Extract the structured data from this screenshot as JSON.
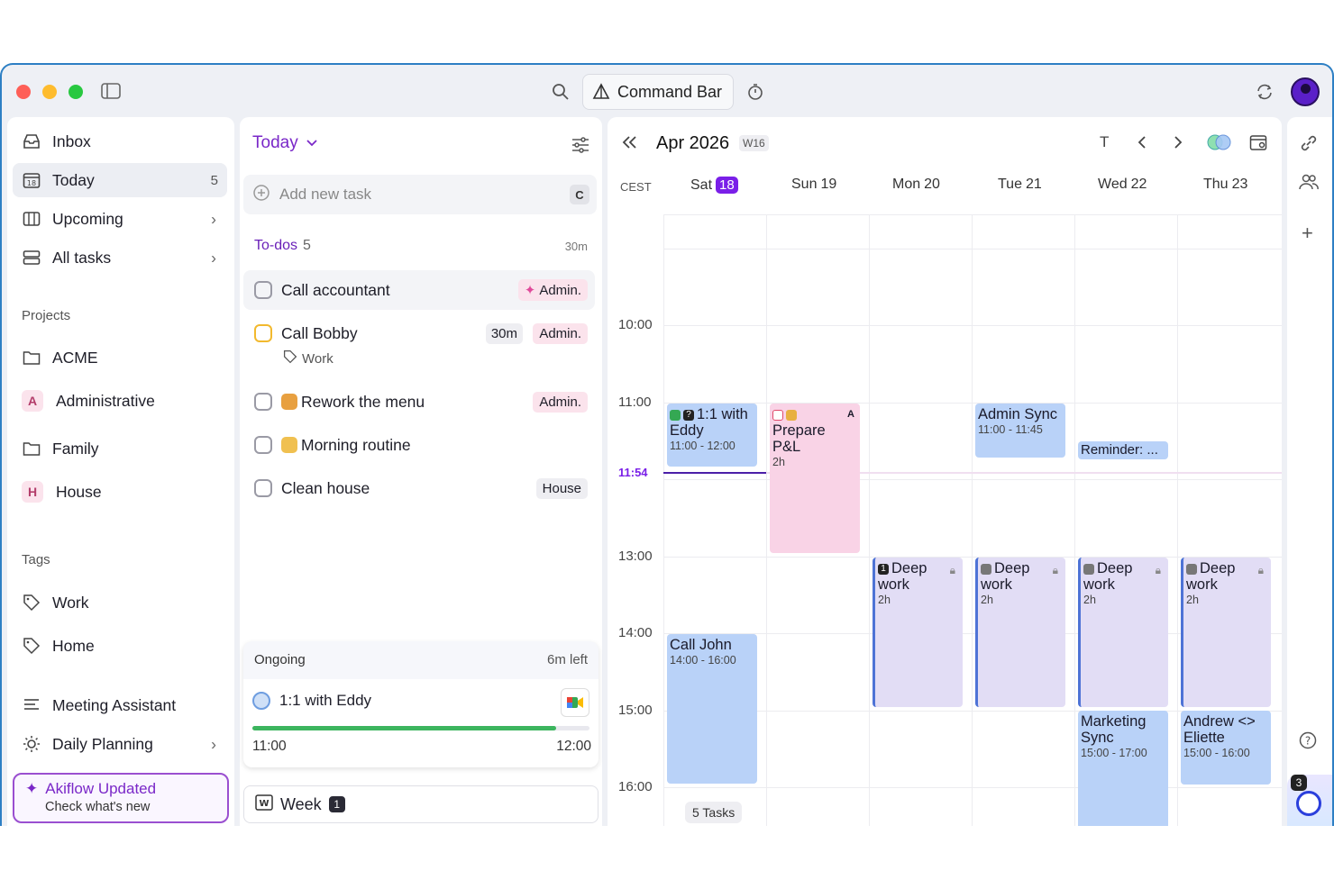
{
  "titlebar": {
    "command_bar": "Command Bar"
  },
  "sidebar": {
    "nav": [
      {
        "label": "Inbox"
      },
      {
        "label": "Today",
        "count": "5"
      },
      {
        "label": "Upcoming"
      },
      {
        "label": "All tasks"
      }
    ],
    "projects_label": "Projects",
    "projects": [
      {
        "label": "ACME"
      },
      {
        "label": "Administrative",
        "badge": "A"
      },
      {
        "label": "Family"
      },
      {
        "label": "House",
        "badge": "H"
      }
    ],
    "tags_label": "Tags",
    "tags": [
      {
        "label": "Work"
      },
      {
        "label": "Home"
      }
    ],
    "extras": [
      {
        "label": "Meeting Assistant"
      },
      {
        "label": "Daily Planning"
      }
    ],
    "update": {
      "title": "Akiflow Updated",
      "subtitle": "Check what's new"
    }
  },
  "tasks": {
    "title": "Today",
    "add_placeholder": "Add new task",
    "add_key": "C",
    "todos_label": "To-dos",
    "todos_count": "5",
    "todos_time": "30m",
    "items": [
      {
        "label": "Call accountant",
        "tag": "Admin."
      },
      {
        "label": "Call Bobby",
        "tag": "Admin.",
        "duration": "30m",
        "subtag": "Work"
      },
      {
        "label": "Rework the menu",
        "tag": "Admin."
      },
      {
        "label": "Morning routine"
      },
      {
        "label": "Clean house",
        "tag": "House"
      }
    ],
    "ongoing": {
      "label": "Ongoing",
      "left": "6m left",
      "event": "1:1 with Eddy",
      "start": "11:00",
      "end": "12:00",
      "progress": 0.9
    },
    "week": {
      "label": "Week",
      "count": "1"
    }
  },
  "calendar": {
    "month": "Apr 2026",
    "week": "W16",
    "today_btn": "T",
    "timezone": "CEST",
    "days": [
      {
        "name": "Sat",
        "num": "18",
        "selected": true
      },
      {
        "name": "Sun",
        "num": "19"
      },
      {
        "name": "Mon",
        "num": "20"
      },
      {
        "name": "Tue",
        "num": "21"
      },
      {
        "name": "Wed",
        "num": "22"
      },
      {
        "name": "Thu",
        "num": "23"
      }
    ],
    "hours": [
      "10:00",
      "11:00",
      "13:00",
      "14:00",
      "15:00",
      "16:00"
    ],
    "now": "11:54",
    "events": {
      "eddy": {
        "title": "1:1 with Eddy",
        "time": "11:00 - 12:00"
      },
      "pnl": {
        "title": "Prepare P&L",
        "dur": "2h",
        "badge": "A"
      },
      "admin_sync": {
        "title": "Admin Sync",
        "time": "11:00 - 11:45"
      },
      "reminder": {
        "title": "Reminder: ..."
      },
      "call_john": {
        "title": "Call John",
        "time": "14:00 - 16:00"
      },
      "deep": {
        "title": "Deep work",
        "dur": "2h"
      },
      "marketing": {
        "title": "Marketing Sync",
        "time": "15:00 - 17:00"
      },
      "andrew": {
        "title": "Andrew <> Eliette",
        "time": "15:00 - 16:00"
      }
    },
    "tasks_chip": "5 Tasks"
  },
  "rail": {
    "badge": "3"
  },
  "colors": {
    "accent": "#7a1fe8",
    "event_blue": "#b9d2f8",
    "event_pink": "#f9d3e6",
    "progress": "#3cb55e"
  }
}
